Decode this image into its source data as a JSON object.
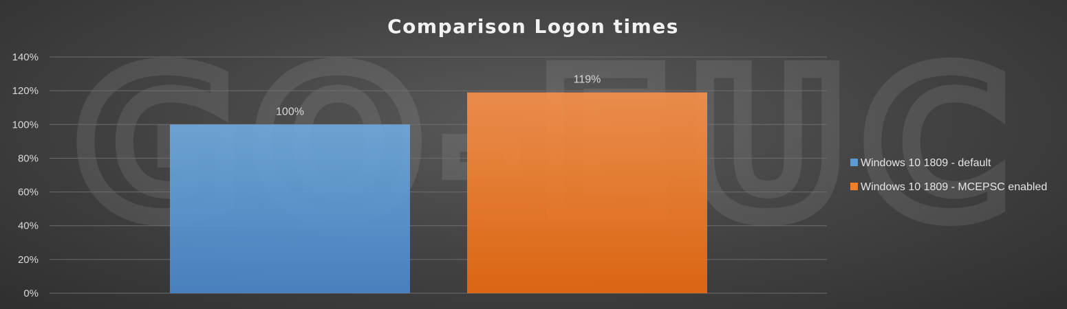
{
  "chart_data": {
    "type": "bar",
    "title": "Comparison Logon times",
    "categories": [
      ""
    ],
    "series": [
      {
        "name": "Windows 10 1809 - default",
        "values": [
          100
        ],
        "label": "100%",
        "color": "#5b9bd5"
      },
      {
        "name": "Windows 10 1809 - MCEPSC enabled",
        "values": [
          119
        ],
        "label": "119%",
        "color": "#f28028"
      }
    ],
    "ylim": [
      0,
      140
    ],
    "yticks": [
      "0%",
      "20%",
      "40%",
      "60%",
      "80%",
      "100%",
      "120%",
      "140%"
    ],
    "grid": true,
    "legend": "right",
    "watermark": "GO-EUC"
  }
}
